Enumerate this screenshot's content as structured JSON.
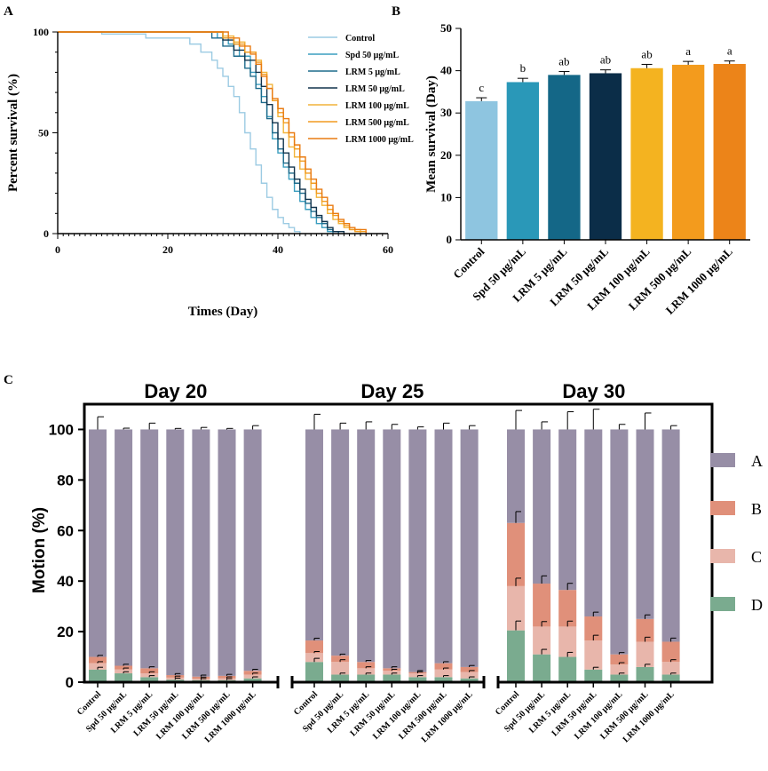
{
  "figure": {
    "panel_a_letter": "A",
    "panel_b_letter": "B",
    "panel_c_letter": "C"
  },
  "chart_data": [
    {
      "type": "line",
      "id": "A",
      "xlabel": "Times (Day)",
      "ylabel": "Percent survival (%)",
      "xlim": [
        0,
        60
      ],
      "ylim": [
        0,
        100
      ],
      "xticks": [
        0,
        20,
        40,
        60
      ],
      "yticks": [
        0,
        50,
        100
      ],
      "series": [
        {
          "name": "Control",
          "color": "#9ccbe3",
          "points": [
            [
              0,
              100
            ],
            [
              8,
              100
            ],
            [
              8,
              99
            ],
            [
              16,
              99
            ],
            [
              16,
              97
            ],
            [
              22,
              97
            ],
            [
              24,
              94
            ],
            [
              26,
              90
            ],
            [
              28,
              86
            ],
            [
              29,
              82
            ],
            [
              30,
              78
            ],
            [
              31,
              73
            ],
            [
              32,
              68
            ],
            [
              33,
              60
            ],
            [
              34,
              50
            ],
            [
              35,
              42
            ],
            [
              36,
              34
            ],
            [
              37,
              25
            ],
            [
              38,
              18
            ],
            [
              39,
              12
            ],
            [
              40,
              8
            ],
            [
              41,
              5
            ],
            [
              42,
              3
            ],
            [
              43,
              1
            ],
            [
              44,
              0
            ]
          ]
        },
        {
          "name": "Spd 50 μg/mL",
          "color": "#3a9dbf",
          "points": [
            [
              0,
              100
            ],
            [
              28,
              100
            ],
            [
              29,
              97
            ],
            [
              31,
              94
            ],
            [
              33,
              88
            ],
            [
              35,
              80
            ],
            [
              36,
              74
            ],
            [
              37,
              68
            ],
            [
              38,
              58
            ],
            [
              39,
              47
            ],
            [
              40,
              40
            ],
            [
              41,
              33
            ],
            [
              42,
              27
            ],
            [
              43,
              21
            ],
            [
              44,
              16
            ],
            [
              45,
              12
            ],
            [
              46,
              8
            ],
            [
              47,
              5
            ],
            [
              48,
              3
            ],
            [
              49,
              1
            ],
            [
              50,
              0
            ]
          ]
        },
        {
          "name": "LRM 5 μg/mL",
          "color": "#1d6b8c",
          "points": [
            [
              0,
              100
            ],
            [
              27,
              100
            ],
            [
              28,
              97
            ],
            [
              30,
              93
            ],
            [
              32,
              88
            ],
            [
              34,
              82
            ],
            [
              35,
              78
            ],
            [
              36,
              72
            ],
            [
              37,
              65
            ],
            [
              38,
              57
            ],
            [
              39,
              50
            ],
            [
              40,
              42
            ],
            [
              41,
              35
            ],
            [
              42,
              30
            ],
            [
              43,
              25
            ],
            [
              44,
              20
            ],
            [
              45,
              15
            ],
            [
              46,
              11
            ],
            [
              47,
              8
            ],
            [
              48,
              5
            ],
            [
              49,
              2
            ],
            [
              50,
              1
            ],
            [
              51,
              0
            ]
          ]
        },
        {
          "name": "LRM 50 μg/mL",
          "color": "#12344d",
          "points": [
            [
              0,
              100
            ],
            [
              29,
              100
            ],
            [
              30,
              96
            ],
            [
              32,
              91
            ],
            [
              34,
              86
            ],
            [
              36,
              80
            ],
            [
              37,
              73
            ],
            [
              38,
              64
            ],
            [
              39,
              55
            ],
            [
              40,
              47
            ],
            [
              41,
              40
            ],
            [
              42,
              33
            ],
            [
              43,
              27
            ],
            [
              44,
              22
            ],
            [
              45,
              17
            ],
            [
              46,
              13
            ],
            [
              47,
              9
            ],
            [
              48,
              6
            ],
            [
              49,
              3
            ],
            [
              50,
              1
            ],
            [
              52,
              0
            ]
          ]
        },
        {
          "name": "LRM 100 μg/mL",
          "color": "#f2b43a",
          "points": [
            [
              0,
              100
            ],
            [
              28,
              100
            ],
            [
              30,
              98
            ],
            [
              32,
              95
            ],
            [
              34,
              90
            ],
            [
              36,
              86
            ],
            [
              37,
              80
            ],
            [
              38,
              74
            ],
            [
              39,
              66
            ],
            [
              40,
              58
            ],
            [
              41,
              50
            ],
            [
              42,
              43
            ],
            [
              43,
              38
            ],
            [
              44,
              32
            ],
            [
              45,
              27
            ],
            [
              46,
              22
            ],
            [
              47,
              18
            ],
            [
              48,
              14
            ],
            [
              49,
              10
            ],
            [
              50,
              7
            ],
            [
              51,
              5
            ],
            [
              52,
              3
            ],
            [
              53,
              2
            ],
            [
              55,
              0
            ]
          ]
        },
        {
          "name": "LRM 500 μg/mL",
          "color": "#f29c20",
          "points": [
            [
              0,
              100
            ],
            [
              29,
              100
            ],
            [
              30,
              97
            ],
            [
              32,
              94
            ],
            [
              34,
              90
            ],
            [
              36,
              85
            ],
            [
              37,
              79
            ],
            [
              38,
              72
            ],
            [
              39,
              66
            ],
            [
              40,
              60
            ],
            [
              41,
              55
            ],
            [
              42,
              48
            ],
            [
              43,
              42
            ],
            [
              44,
              36
            ],
            [
              45,
              30
            ],
            [
              46,
              25
            ],
            [
              47,
              20
            ],
            [
              48,
              16
            ],
            [
              49,
              12
            ],
            [
              50,
              9
            ],
            [
              51,
              6
            ],
            [
              52,
              4
            ],
            [
              53,
              2
            ],
            [
              54,
              1
            ],
            [
              56,
              0
            ]
          ]
        },
        {
          "name": "LRM 1000 μg/mL",
          "color": "#e97b12",
          "points": [
            [
              0,
              100
            ],
            [
              30,
              100
            ],
            [
              31,
              97
            ],
            [
              33,
              93
            ],
            [
              35,
              89
            ],
            [
              36,
              84
            ],
            [
              37,
              78
            ],
            [
              38,
              72
            ],
            [
              39,
              67
            ],
            [
              40,
              62
            ],
            [
              41,
              57
            ],
            [
              42,
              50
            ],
            [
              43,
              44
            ],
            [
              44,
              38
            ],
            [
              45,
              32
            ],
            [
              46,
              27
            ],
            [
              47,
              22
            ],
            [
              48,
              18
            ],
            [
              49,
              14
            ],
            [
              50,
              10
            ],
            [
              51,
              7
            ],
            [
              52,
              5
            ],
            [
              53,
              3
            ],
            [
              54,
              2
            ],
            [
              56,
              0
            ]
          ]
        }
      ]
    },
    {
      "type": "bar",
      "id": "B",
      "ylabel": "Mean survival (Day)",
      "ylim": [
        0,
        50
      ],
      "yticks": [
        0,
        10,
        20,
        30,
        40,
        50
      ],
      "categories": [
        "Control",
        "Spd 50 μg/mL",
        "LRM 5 μg/mL",
        "LRM 50 μg/mL",
        "LRM 100 μg/mL",
        "LRM 500 μg/mL",
        "LRM 1000 μg/mL"
      ],
      "values": [
        32.8,
        37.3,
        39.0,
        39.4,
        40.6,
        41.4,
        41.6
      ],
      "errors": [
        0.8,
        0.9,
        0.8,
        0.8,
        0.9,
        0.8,
        0.7
      ],
      "letters": [
        "c",
        "b",
        "ab",
        "ab",
        "ab",
        "a",
        "a"
      ],
      "colors": [
        "#8ec5e0",
        "#2a98b8",
        "#146787",
        "#0b2d48",
        "#f4b320",
        "#f39b1d",
        "#ec8419"
      ]
    },
    {
      "type": "stacked-bar",
      "id": "C",
      "ylabel": "Motion (%)",
      "ylim": [
        0,
        110
      ],
      "yticks": [
        0,
        20,
        40,
        60,
        80,
        100
      ],
      "categories": [
        "Control",
        "Spd 50 μg/mL",
        "LRM 5 μg/mL",
        "LRM 50 μg/mL",
        "LRM 100 μg/mL",
        "LRM 500 μg/mL",
        "LRM 1000 μg/mL"
      ],
      "stack_order": [
        "D",
        "C",
        "B",
        "A"
      ],
      "legend": [
        {
          "label": "A",
          "color": "#978ea6"
        },
        {
          "label": "B",
          "color": "#e0907a"
        },
        {
          "label": "C",
          "color": "#e8b6ab"
        },
        {
          "label": "D",
          "color": "#7aab8f"
        }
      ],
      "groups": [
        {
          "title": "Day 20",
          "D": [
            5,
            3.5,
            2,
            1,
            0.8,
            0.8,
            1.5
          ],
          "C": [
            2.5,
            1.5,
            1.5,
            0.8,
            0.6,
            0.7,
            1.5
          ],
          "B": [
            2.5,
            1.5,
            2,
            1,
            0.8,
            1,
            1.5
          ],
          "err": [
            5,
            0.5,
            2.5,
            0.4,
            0.8,
            0.4,
            1.5
          ]
        },
        {
          "title": "Day 25",
          "D": [
            8,
            3,
            3,
            3,
            2,
            2,
            1.5
          ],
          "C": [
            3.5,
            5,
            2.5,
            1.5,
            1.5,
            3,
            2.5
          ],
          "B": [
            5,
            2.5,
            2.5,
            1,
            0.5,
            2.5,
            2
          ],
          "err": [
            6,
            2.5,
            3,
            2,
            1,
            2.5,
            1.5
          ]
        },
        {
          "title": "Day 30",
          "D": [
            20.5,
            11,
            10,
            5,
            3,
            6,
            3
          ],
          "C": [
            17.5,
            11,
            12,
            11.5,
            4,
            10,
            5
          ],
          "B": [
            25,
            17,
            14.5,
            9.5,
            4,
            9,
            8
          ],
          "err": [
            7.5,
            3,
            7,
            8,
            2,
            6.5,
            1.5
          ]
        }
      ]
    }
  ]
}
